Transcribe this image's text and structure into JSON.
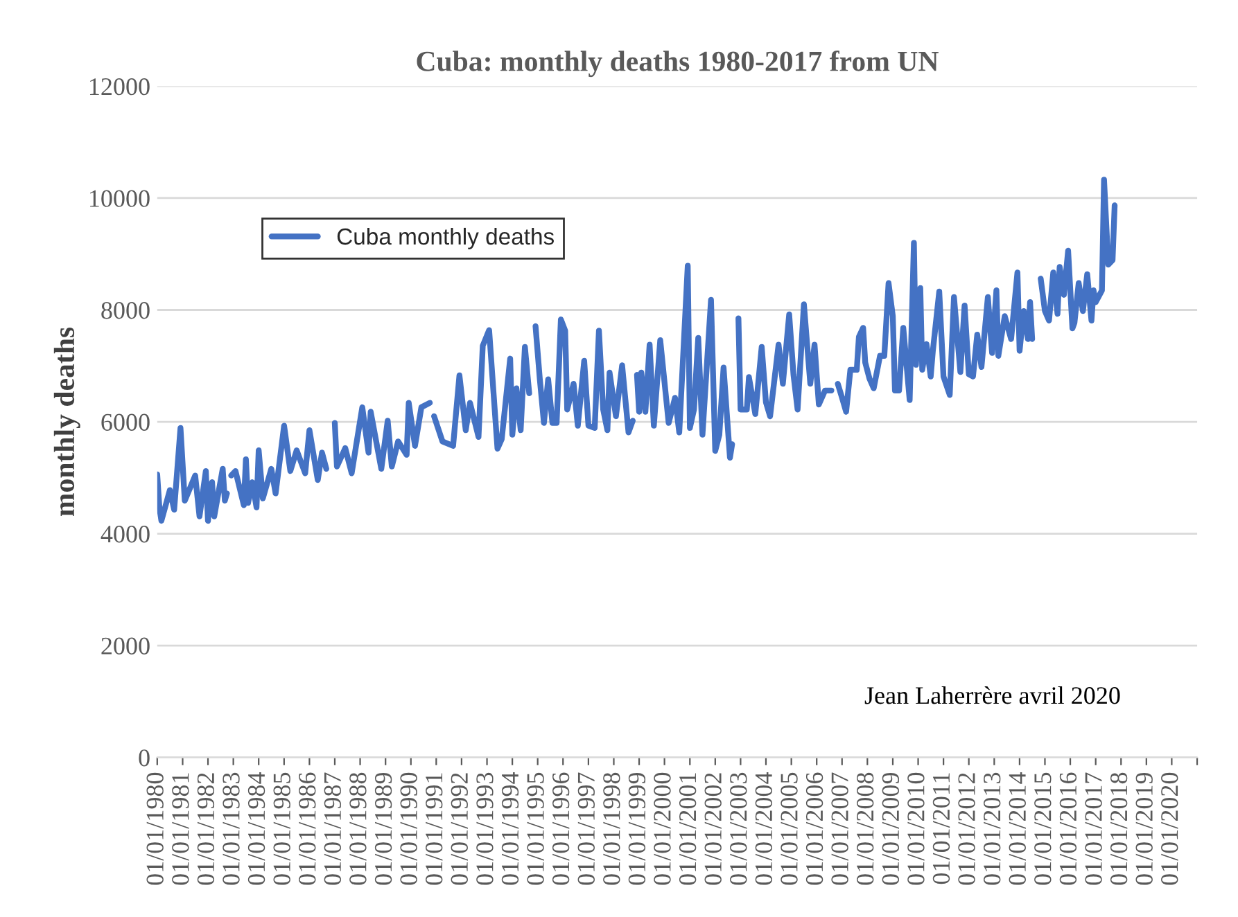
{
  "chart_data": {
    "type": "line",
    "title": "Cuba: monthly deaths 1980-2017 from UN",
    "ylabel": "monthly deaths",
    "annotations": [
      "Jean Laherrère avril 2020"
    ],
    "legend": "top left",
    "grid": "y",
    "line_style": "solid",
    "marker": "none",
    "ylim": [
      0,
      12000
    ],
    "yticks": [
      0,
      2000,
      4000,
      6000,
      8000,
      10000,
      12000
    ],
    "xlim": [
      "1980-01-01",
      "2021-01-01"
    ],
    "xticks": [
      {
        "value": "1980-01-01",
        "label": "01/01/1980"
      },
      {
        "value": "1981-01-01",
        "label": "01/01/1981"
      },
      {
        "value": "1982-01-01",
        "label": "01/01/1982"
      },
      {
        "value": "1983-01-01",
        "label": "01/01/1983"
      },
      {
        "value": "1984-01-01",
        "label": "01/01/1984"
      },
      {
        "value": "1985-01-01",
        "label": "01/01/1985"
      },
      {
        "value": "1986-01-01",
        "label": "01/01/1986"
      },
      {
        "value": "1987-01-01",
        "label": "01/01/1987"
      },
      {
        "value": "1988-01-01",
        "label": "01/01/1988"
      },
      {
        "value": "1989-01-01",
        "label": "01/01/1989"
      },
      {
        "value": "1990-01-01",
        "label": "01/01/1990"
      },
      {
        "value": "1991-01-01",
        "label": "01/01/1991"
      },
      {
        "value": "1992-01-01",
        "label": "01/01/1992"
      },
      {
        "value": "1993-01-01",
        "label": "01/01/1993"
      },
      {
        "value": "1994-01-01",
        "label": "01/01/1994"
      },
      {
        "value": "1995-01-01",
        "label": "01/01/1995"
      },
      {
        "value": "1996-01-01",
        "label": "01/01/1996"
      },
      {
        "value": "1997-01-01",
        "label": "01/01/1997"
      },
      {
        "value": "1998-01-01",
        "label": "01/01/1998"
      },
      {
        "value": "1999-01-01",
        "label": "01/01/1999"
      },
      {
        "value": "2000-01-01",
        "label": "01/01/2000"
      },
      {
        "value": "2001-01-01",
        "label": "01/01/2001"
      },
      {
        "value": "2002-01-01",
        "label": "01/01/2002"
      },
      {
        "value": "2003-01-01",
        "label": "01/01/2003"
      },
      {
        "value": "2004-01-01",
        "label": "01/01/2004"
      },
      {
        "value": "2005-01-01",
        "label": "01/01/2005"
      },
      {
        "value": "2006-01-01",
        "label": "01/01/2006"
      },
      {
        "value": "2007-01-01",
        "label": "01/01/2007"
      },
      {
        "value": "2008-01-01",
        "label": "01/01/2008"
      },
      {
        "value": "2009-01-01",
        "label": "01/01/2009"
      },
      {
        "value": "2010-01-01",
        "label": "01/01/2010"
      },
      {
        "value": "2011-01-01",
        "label": "01/01/2011"
      },
      {
        "value": "2012-01-01",
        "label": "01/01/2012"
      },
      {
        "value": "2013-01-01",
        "label": "01/01/2013"
      },
      {
        "value": "2014-01-01",
        "label": "01/01/2014"
      },
      {
        "value": "2015-01-01",
        "label": "01/01/2015"
      },
      {
        "value": "2016-01-01",
        "label": "01/01/2016"
      },
      {
        "value": "2017-01-01",
        "label": "01/01/2017"
      },
      {
        "value": "2018-01-01",
        "label": "01/01/2018"
      },
      {
        "value": "2019-01-01",
        "label": "01/01/2019"
      },
      {
        "value": "2020-01-01",
        "label": "01/01/2020"
      },
      {
        "value": "2021-01-01",
        "label": null
      }
    ],
    "x": [
      "1980-01",
      "1980-02",
      "1980-03",
      "1980-07",
      "1980-09",
      "1980-12",
      "1981-02",
      "1981-07",
      "1981-09",
      "1981-12",
      "1982-01",
      "1982-03",
      "1982-04",
      "1982-08",
      "1982-09",
      "1982-10",
      "1982-11",
      "1982-12",
      "1983-02",
      "1983-06",
      "1983-07",
      "1983-08",
      "1983-10",
      "1983-12",
      "1984-01",
      "1984-03",
      "1984-07",
      "1984-09",
      "1985-01",
      "1985-04",
      "1985-07",
      "1985-11",
      "1986-01",
      "1986-05",
      "1986-07",
      "1986-09",
      "1986-10",
      "1987-01",
      "1987-02",
      "1987-06",
      "1987-09",
      "1988-02",
      "1988-05",
      "1988-06",
      "1988-11",
      "1989-02",
      "1989-04",
      "1989-07",
      "1989-11",
      "1989-12",
      "1990-03",
      "1990-06",
      "1990-10",
      "1990-11",
      "1990-12",
      "1991-04",
      "1991-09",
      "1991-12",
      "1992-03",
      "1992-05",
      "1992-09",
      "1992-11",
      "1993-02",
      "1993-04",
      "1993-06",
      "1993-08",
      "1993-12",
      "1994-01",
      "1994-03",
      "1994-05",
      "1994-07",
      "1994-09",
      "1994-10",
      "1994-12",
      "1995-02",
      "1995-04",
      "1995-06",
      "1995-08",
      "1995-10",
      "1995-12",
      "1996-02",
      "1996-03",
      "1996-06",
      "1996-08",
      "1996-11",
      "1997-01",
      "1997-04",
      "1997-06",
      "1997-08",
      "1997-10",
      "1997-11",
      "1998-02",
      "1998-05",
      "1998-08",
      "1998-10",
      "1998-11",
      "1998-12",
      "1999-01",
      "1999-02",
      "1999-04",
      "1999-06",
      "1999-08",
      "1999-11",
      "2000-03",
      "2000-06",
      "2000-08",
      "2000-12",
      "2001-01",
      "2001-03",
      "2001-05",
      "2001-07",
      "2001-11",
      "2002-01",
      "2002-03",
      "2002-05",
      "2002-08",
      "2002-09",
      "2002-10",
      "2002-12",
      "2003-01",
      "2003-04",
      "2003-05",
      "2003-08",
      "2003-11",
      "2004-01",
      "2004-03",
      "2004-07",
      "2004-09",
      "2004-12",
      "2005-02",
      "2005-04",
      "2005-07",
      "2005-10",
      "2005-12",
      "2006-02",
      "2006-05",
      "2006-08",
      "2006-09",
      "2006-11",
      "2007-01",
      "2007-03",
      "2007-05",
      "2007-08",
      "2007-09",
      "2007-11",
      "2007-12",
      "2008-02",
      "2008-04",
      "2008-07",
      "2008-09",
      "2008-11",
      "2009-01",
      "2009-02",
      "2009-04",
      "2009-06",
      "2009-09",
      "2009-11",
      "2009-12",
      "2010-02",
      "2010-03",
      "2010-05",
      "2010-07",
      "2010-08",
      "2010-11",
      "2011-01",
      "2011-04",
      "2011-06",
      "2011-09",
      "2011-11",
      "2012-01",
      "2012-03",
      "2012-05",
      "2012-07",
      "2012-10",
      "2012-12",
      "2013-02",
      "2013-03",
      "2013-06",
      "2013-09",
      "2013-12",
      "2014-01",
      "2014-03",
      "2014-05",
      "2014-06",
      "2014-07",
      "2014-09",
      "2014-11",
      "2015-01",
      "2015-03",
      "2015-05",
      "2015-07",
      "2015-08",
      "2015-10",
      "2015-12",
      "2016-02",
      "2016-03",
      "2016-05",
      "2016-07",
      "2016-09",
      "2016-11",
      "2016-12",
      "2017-01",
      "2017-04",
      "2017-05",
      "2017-07",
      "2017-09",
      "2017-10"
    ],
    "series": [
      {
        "name": "Cuba monthly deaths",
        "color": "#4472c4",
        "values": [
          5060,
          4470,
          4230,
          4780,
          4430,
          5890,
          4590,
          5040,
          4310,
          5120,
          4230,
          4920,
          4310,
          5160,
          4590,
          4720,
          null,
          5040,
          5120,
          4510,
          5330,
          4550,
          4920,
          4470,
          5490,
          4630,
          5160,
          4720,
          5930,
          5120,
          5490,
          5080,
          5850,
          4960,
          5450,
          5160,
          null,
          5980,
          5200,
          5530,
          5080,
          6260,
          5450,
          6180,
          5160,
          6020,
          5200,
          5650,
          5410,
          6340,
          5570,
          6260,
          6340,
          null,
          6100,
          5650,
          5570,
          6830,
          5850,
          6340,
          5730,
          7360,
          7640,
          6590,
          5520,
          5690,
          7130,
          5770,
          6600,
          5850,
          7340,
          6510,
          null,
          7710,
          6760,
          5980,
          6760,
          5980,
          5980,
          7830,
          7630,
          6220,
          6680,
          5930,
          7090,
          5930,
          5890,
          7630,
          6220,
          5850,
          6880,
          6100,
          7010,
          5810,
          6020,
          null,
          6840,
          6180,
          6880,
          6180,
          7380,
          5930,
          7460,
          5980,
          6430,
          5810,
          8790,
          5890,
          6220,
          7500,
          5770,
          8180,
          5480,
          5770,
          6970,
          5360,
          5600,
          null,
          7850,
          6220,
          6220,
          6800,
          6140,
          7340,
          6350,
          6100,
          7380,
          6680,
          7920,
          6840,
          6220,
          8100,
          6680,
          7380,
          6310,
          6560,
          6560,
          null,
          6680,
          6430,
          6180,
          6930,
          6930,
          7520,
          7680,
          7060,
          6770,
          6600,
          7180,
          7180,
          8480,
          7890,
          6560,
          6560,
          7680,
          6390,
          9200,
          7020,
          8390,
          6930,
          7390,
          6810,
          7270,
          8330,
          6810,
          6480,
          8230,
          6890,
          8080,
          6850,
          6810,
          7560,
          6980,
          8230,
          7230,
          8350,
          7180,
          7890,
          7480,
          8670,
          7270,
          7980,
          7480,
          8140,
          7480,
          null,
          8560,
          7980,
          7810,
          8670,
          7930,
          8770,
          8270,
          9060,
          7670,
          7770,
          8480,
          7980,
          8640,
          7810,
          8350,
          8140,
          8350,
          10330,
          8810,
          8890,
          9870
        ]
      }
    ]
  }
}
